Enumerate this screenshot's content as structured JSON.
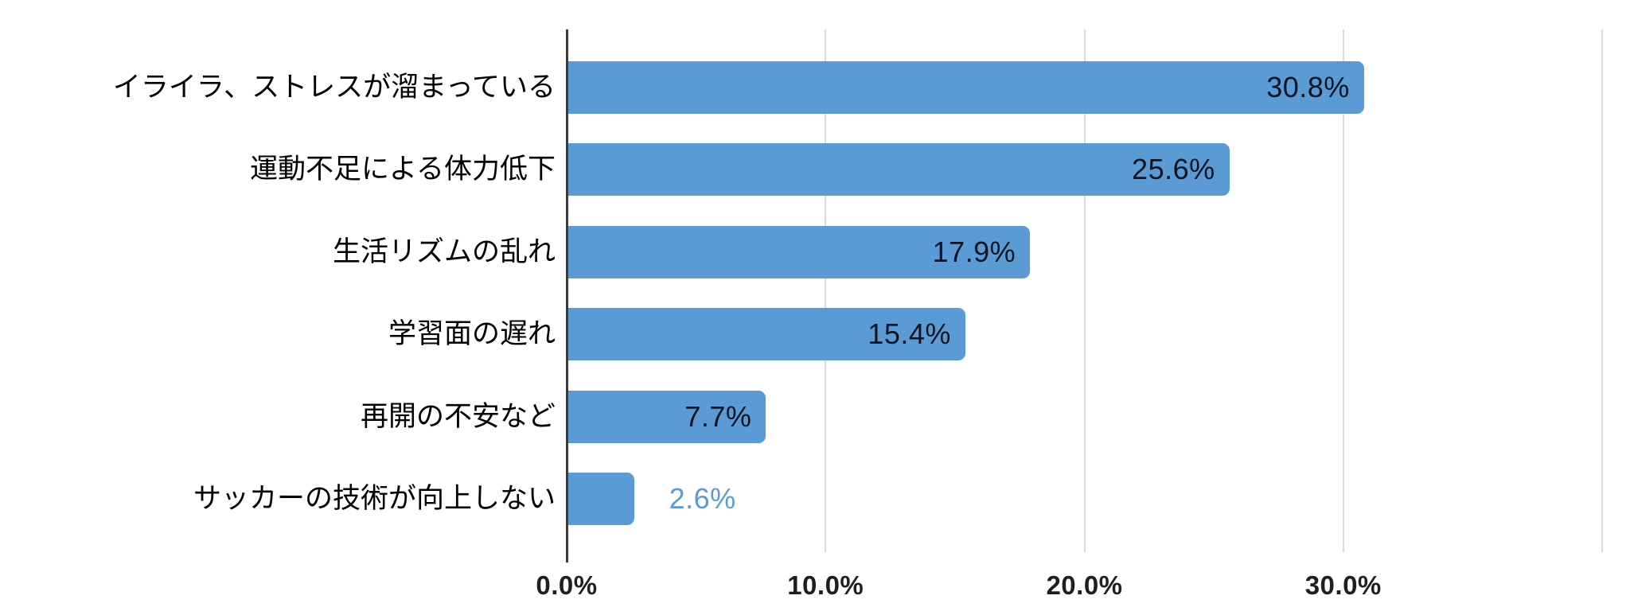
{
  "chart_data": {
    "type": "bar",
    "orientation": "horizontal",
    "title": "",
    "xlabel": "",
    "ylabel": "",
    "legend": "none",
    "grid": true,
    "xlim": [
      0,
      40
    ],
    "categories": [
      "イライラ、ストレスが溜まっている",
      "運動不足による体力低下",
      "生活リズムの乱れ",
      "学習面の遅れ",
      "再開の不安など",
      "サッカーの技術が向上しない"
    ],
    "values": [
      30.8,
      25.6,
      17.9,
      15.4,
      7.7,
      2.6
    ],
    "data_labels": [
      "30.8%",
      "25.6%",
      "17.9%",
      "15.4%",
      "7.7%",
      "2.6%"
    ],
    "data_label_inside": [
      true,
      true,
      true,
      true,
      true,
      false
    ],
    "x_ticks": [
      {
        "value": 0,
        "label": "0.0%"
      },
      {
        "value": 10,
        "label": "10.0%"
      },
      {
        "value": 20,
        "label": "20.0%"
      },
      {
        "value": 30,
        "label": "30.0%"
      },
      {
        "value": 40,
        "label": ""
      }
    ],
    "colors": {
      "bar": "#5b9bd5",
      "data_label_inside": "#0d1420",
      "data_label_outside": "#5b9bd5",
      "gridline": "#d9d9d9",
      "axis_line": "#3b3b3b",
      "axis_tick_label": "#1f1f1f",
      "category_label": "#000000",
      "background": "#ffffff"
    }
  }
}
